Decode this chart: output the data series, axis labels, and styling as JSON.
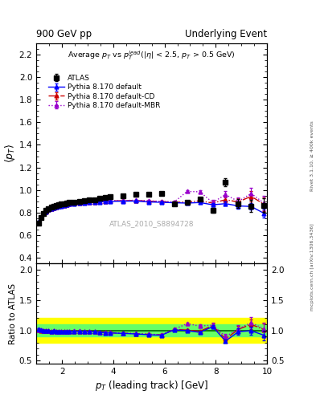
{
  "title_left": "900 GeV pp",
  "title_right": "Underlying Event",
  "right_label_bottom": "mcplots.cern.ch [arXiv:1306.3436]",
  "right_label_top": "Rivet 3.1.10, ≥ 400k events",
  "watermark": "ATLAS_2010_S8894728",
  "ylabel_main": "⟨p_T⟩",
  "ylabel_ratio": "Ratio to ATLAS",
  "xlabel": "p$_T$ (leading track) [GeV]",
  "xlim": [
    1.0,
    10.0
  ],
  "ylim_main": [
    0.35,
    2.3
  ],
  "ylim_ratio": [
    0.45,
    2.1
  ],
  "yticks_main": [
    0.4,
    0.6,
    0.8,
    1.0,
    1.2,
    1.4,
    1.6,
    1.8,
    2.0,
    2.2
  ],
  "yticks_ratio": [
    0.5,
    1.0,
    1.5,
    2.0
  ],
  "atlas_x": [
    1.08,
    1.18,
    1.28,
    1.38,
    1.48,
    1.58,
    1.68,
    1.78,
    1.88,
    1.98,
    2.08,
    2.18,
    2.28,
    2.48,
    2.68,
    2.88,
    3.08,
    3.28,
    3.48,
    3.68,
    3.88,
    4.38,
    4.88,
    5.38,
    5.88,
    6.38,
    6.88,
    7.38,
    7.88,
    8.38,
    8.88,
    9.38,
    9.88
  ],
  "atlas_y": [
    0.71,
    0.755,
    0.795,
    0.82,
    0.835,
    0.85,
    0.855,
    0.865,
    0.87,
    0.875,
    0.88,
    0.885,
    0.89,
    0.895,
    0.9,
    0.905,
    0.91,
    0.915,
    0.925,
    0.935,
    0.94,
    0.95,
    0.96,
    0.965,
    0.97,
    0.88,
    0.89,
    0.92,
    0.82,
    1.07,
    0.88,
    0.86,
    0.865
  ],
  "atlas_yerr": [
    0.01,
    0.008,
    0.007,
    0.006,
    0.006,
    0.005,
    0.005,
    0.005,
    0.005,
    0.005,
    0.005,
    0.005,
    0.005,
    0.005,
    0.005,
    0.005,
    0.005,
    0.005,
    0.005,
    0.005,
    0.005,
    0.006,
    0.006,
    0.007,
    0.007,
    0.01,
    0.012,
    0.015,
    0.02,
    0.035,
    0.04,
    0.05,
    0.06
  ],
  "py_default_x": [
    1.08,
    1.18,
    1.28,
    1.38,
    1.48,
    1.58,
    1.68,
    1.78,
    1.88,
    1.98,
    2.08,
    2.18,
    2.28,
    2.48,
    2.68,
    2.88,
    3.08,
    3.28,
    3.48,
    3.68,
    3.88,
    4.38,
    4.88,
    5.38,
    5.88,
    6.38,
    6.88,
    7.38,
    7.88,
    8.38,
    8.88,
    9.38,
    9.88
  ],
  "py_default_y": [
    0.72,
    0.76,
    0.79,
    0.81,
    0.825,
    0.835,
    0.845,
    0.85,
    0.855,
    0.86,
    0.865,
    0.87,
    0.875,
    0.88,
    0.885,
    0.885,
    0.89,
    0.892,
    0.895,
    0.898,
    0.9,
    0.902,
    0.903,
    0.895,
    0.892,
    0.888,
    0.885,
    0.89,
    0.87,
    0.88,
    0.86,
    0.855,
    0.795
  ],
  "py_default_yerr": [
    0.005,
    0.004,
    0.004,
    0.003,
    0.003,
    0.003,
    0.003,
    0.003,
    0.003,
    0.003,
    0.003,
    0.003,
    0.003,
    0.003,
    0.003,
    0.003,
    0.003,
    0.003,
    0.003,
    0.003,
    0.003,
    0.003,
    0.003,
    0.003,
    0.004,
    0.005,
    0.006,
    0.008,
    0.012,
    0.018,
    0.022,
    0.028,
    0.04
  ],
  "py_cd_x": [
    1.08,
    1.18,
    1.28,
    1.38,
    1.48,
    1.58,
    1.68,
    1.78,
    1.88,
    1.98,
    2.08,
    2.18,
    2.28,
    2.48,
    2.68,
    2.88,
    3.08,
    3.28,
    3.48,
    3.68,
    3.88,
    4.38,
    4.88,
    5.38,
    5.88,
    6.38,
    6.88,
    7.38,
    7.88,
    8.38,
    8.88,
    9.38,
    9.88
  ],
  "py_cd_y": [
    0.715,
    0.755,
    0.79,
    0.81,
    0.825,
    0.836,
    0.845,
    0.852,
    0.857,
    0.862,
    0.867,
    0.872,
    0.877,
    0.883,
    0.888,
    0.889,
    0.893,
    0.895,
    0.899,
    0.902,
    0.904,
    0.906,
    0.908,
    0.902,
    0.898,
    0.892,
    0.895,
    0.905,
    0.885,
    0.915,
    0.895,
    0.945,
    0.875
  ],
  "py_cd_yerr": [
    0.005,
    0.004,
    0.004,
    0.003,
    0.003,
    0.003,
    0.003,
    0.003,
    0.003,
    0.003,
    0.003,
    0.003,
    0.003,
    0.003,
    0.003,
    0.003,
    0.003,
    0.003,
    0.003,
    0.003,
    0.003,
    0.004,
    0.004,
    0.005,
    0.005,
    0.007,
    0.009,
    0.012,
    0.018,
    0.025,
    0.032,
    0.045,
    0.06
  ],
  "py_mbr_x": [
    1.08,
    1.18,
    1.28,
    1.38,
    1.48,
    1.58,
    1.68,
    1.78,
    1.88,
    1.98,
    2.08,
    2.18,
    2.28,
    2.48,
    2.68,
    2.88,
    3.08,
    3.28,
    3.48,
    3.68,
    3.88,
    4.38,
    4.88,
    5.38,
    5.88,
    6.38,
    6.88,
    7.38,
    7.88,
    8.38,
    8.88,
    9.38,
    9.88
  ],
  "py_mbr_y": [
    0.718,
    0.758,
    0.792,
    0.812,
    0.826,
    0.837,
    0.846,
    0.853,
    0.858,
    0.863,
    0.868,
    0.873,
    0.878,
    0.884,
    0.889,
    0.89,
    0.894,
    0.896,
    0.9,
    0.903,
    0.905,
    0.908,
    0.91,
    0.905,
    0.9,
    0.895,
    0.988,
    0.985,
    0.89,
    0.96,
    0.9,
    0.97,
    0.885
  ],
  "py_mbr_yerr": [
    0.005,
    0.004,
    0.004,
    0.003,
    0.003,
    0.003,
    0.003,
    0.003,
    0.003,
    0.003,
    0.003,
    0.003,
    0.003,
    0.003,
    0.003,
    0.003,
    0.003,
    0.003,
    0.003,
    0.003,
    0.003,
    0.004,
    0.004,
    0.005,
    0.006,
    0.008,
    0.01,
    0.014,
    0.02,
    0.028,
    0.035,
    0.05,
    0.065
  ],
  "atlas_color": "black",
  "py_default_color": "blue",
  "py_cd_color": "#cc0000",
  "py_mbr_color": "#9900cc",
  "band_green": [
    0.9,
    1.1
  ],
  "band_yellow": [
    0.8,
    1.2
  ],
  "background_color": "white"
}
